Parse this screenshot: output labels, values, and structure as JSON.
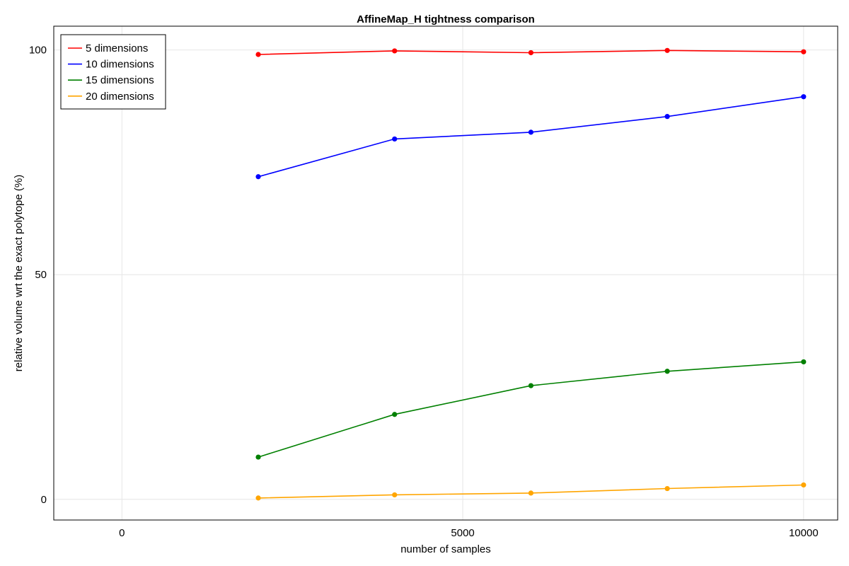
{
  "chart_data": {
    "type": "line",
    "title": "AffineMap_H tightness comparison",
    "xlabel": "number of samples",
    "ylabel": "relative volume wrt the exact polytope (%)",
    "xlim": [
      -1000,
      10500
    ],
    "ylim": [
      -4.6,
      105.3
    ],
    "xticks": [
      0,
      5000,
      10000
    ],
    "xtick_labels": [
      "0",
      "5000",
      "10000"
    ],
    "yticks": [
      0,
      50,
      100
    ],
    "ytick_labels": [
      "0",
      "50",
      "100"
    ],
    "grid": true,
    "legend_position": "top-left",
    "x": [
      2000,
      4000,
      6000,
      8000,
      10000
    ],
    "series": [
      {
        "name": "5 dimensions",
        "color": "#ff0000",
        "values": [
          99.0,
          99.8,
          99.4,
          99.9,
          99.6
        ]
      },
      {
        "name": "10 dimensions",
        "color": "#0000ff",
        "values": [
          71.8,
          80.2,
          81.7,
          85.2,
          89.6
        ]
      },
      {
        "name": "15 dimensions",
        "color": "#008000",
        "values": [
          9.4,
          18.9,
          25.3,
          28.5,
          30.6
        ]
      },
      {
        "name": "20 dimensions",
        "color": "#ffa500",
        "values": [
          0.3,
          1.0,
          1.4,
          2.4,
          3.2
        ]
      }
    ]
  }
}
